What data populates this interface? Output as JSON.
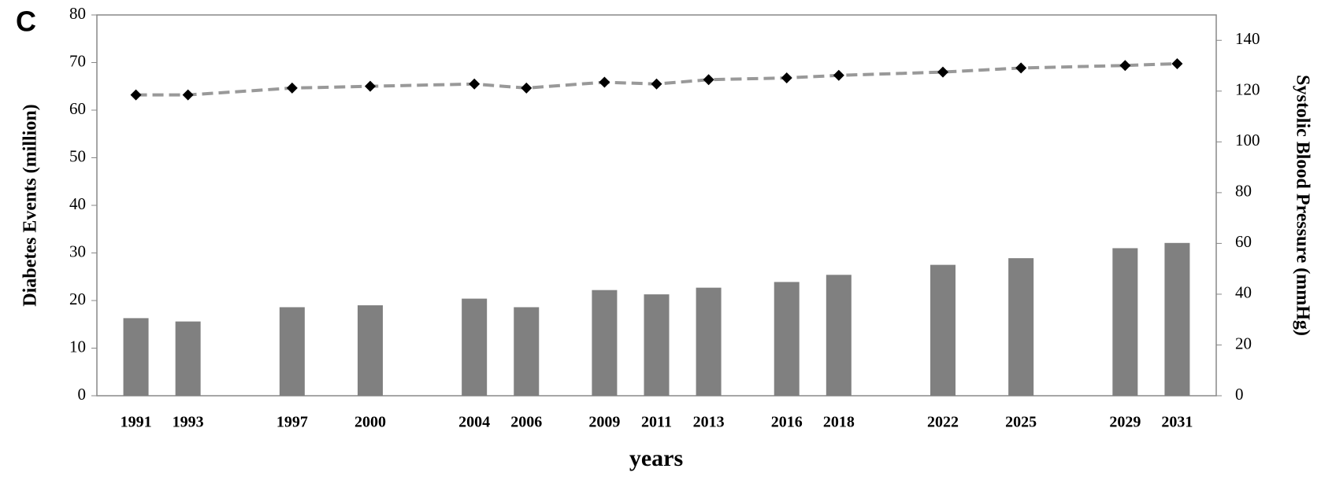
{
  "chart_data": {
    "type": "bar",
    "panel_label": "C",
    "x_label": "years",
    "y_label": "Diabetes Events (million)",
    "y2_label": "Systolic Blood Pressure (mmHg)",
    "x": [
      1991,
      1993,
      1997,
      2000,
      2004,
      2006,
      2009,
      2011,
      2013,
      2016,
      2018,
      2022,
      2025,
      2029,
      2031
    ],
    "xlim": [
      1989.5,
      2032.5
    ],
    "ylim": [
      0,
      80
    ],
    "yticks": [
      0,
      10,
      20,
      30,
      40,
      50,
      60,
      70,
      80
    ],
    "y2lim": [
      0,
      150
    ],
    "y2ticks": [
      0,
      20,
      40,
      60,
      80,
      100,
      120,
      140
    ],
    "series": [
      {
        "type": "bar",
        "color": "#808080",
        "axis": "y",
        "values": [
          16.3,
          15.6,
          18.6,
          19.0,
          20.4,
          18.6,
          22.2,
          21.3,
          22.7,
          23.9,
          25.4,
          27.5,
          28.9,
          31.0,
          32.1
        ]
      },
      {
        "type": "line",
        "color": "#999999",
        "marker_color": "#000000",
        "axis": "y2",
        "values": [
          118.5,
          118.5,
          121.2,
          121.9,
          122.8,
          121.2,
          123.5,
          122.8,
          124.5,
          125.2,
          126.2,
          127.5,
          129.1,
          130.1,
          130.8
        ]
      }
    ]
  }
}
